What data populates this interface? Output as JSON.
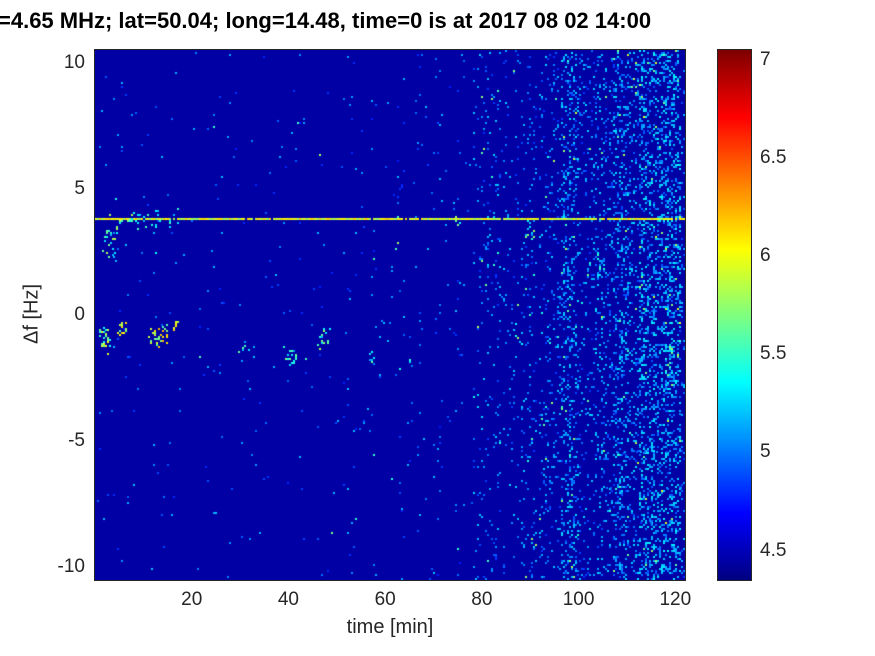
{
  "chart_data": {
    "type": "heatmap",
    "title": "=4.65 MHz;  lat=50.04; long=14.48, time=0 is at 2017 08 02 14:00",
    "xlabel": "time [min]",
    "ylabel": "Δf [Hz]",
    "xlim": [
      0,
      122
    ],
    "ylim": [
      -10.5,
      10.5
    ],
    "x_ticks": [
      20,
      40,
      60,
      80,
      100,
      120
    ],
    "y_ticks": [
      10,
      5,
      0,
      -5,
      -10
    ],
    "grid": false,
    "colormap": "jet",
    "colorbar": {
      "position": "right",
      "min": 4.35,
      "max": 7.05,
      "ticks": [
        4.5,
        5,
        5.5,
        6,
        6.5,
        7
      ]
    },
    "background_value": 4.45,
    "carrier_line": {
      "f": 3.8,
      "value": 5.95,
      "jitter": 0.4,
      "gap_prob": 0.07
    },
    "noise": {
      "base_density": 0.006,
      "base_value": 5.0,
      "bands": [
        {
          "t": 42,
          "dt": 1.5,
          "density": 0.012,
          "value": 5.0
        },
        {
          "t": 52,
          "dt": 2,
          "density": 0.015,
          "value": 5.0
        },
        {
          "t": 57,
          "dt": 1.5,
          "density": 0.018,
          "value": 5.0
        },
        {
          "t": 62,
          "dt": 2,
          "density": 0.022,
          "value": 5.0
        },
        {
          "t": 66,
          "dt": 1.5,
          "density": 0.02,
          "value": 5.0
        },
        {
          "t": 70,
          "dt": 2,
          "density": 0.028,
          "value": 5.0
        },
        {
          "t": 74,
          "dt": 1.5,
          "density": 0.025,
          "value": 5.0
        },
        {
          "t": 78,
          "dt": 2,
          "density": 0.04,
          "value": 5.05
        },
        {
          "t": 80,
          "dt": 4,
          "density": 0.055,
          "value": 5.05
        },
        {
          "t": 84.5,
          "dt": 3,
          "density": 0.045,
          "value": 5.05
        },
        {
          "t": 88,
          "dt": 3.5,
          "density": 0.07,
          "value": 5.05
        },
        {
          "t": 92,
          "dt": 30,
          "density": 0.085,
          "value": 5.05
        },
        {
          "t": 96.5,
          "dt": 3.5,
          "density": 0.2,
          "value": 5.1
        },
        {
          "t": 103.5,
          "dt": 3,
          "density": 0.13,
          "value": 5.1
        },
        {
          "t": 107,
          "dt": 3.5,
          "density": 0.22,
          "value": 5.1
        },
        {
          "t": 110.5,
          "dt": 2,
          "density": 0.15,
          "value": 5.1
        },
        {
          "t": 112.5,
          "dt": 8.5,
          "density": 0.27,
          "value": 5.15
        }
      ]
    },
    "clusters": [
      {
        "t": 0.5,
        "dt": 18,
        "f": 3.85,
        "df": 0.8,
        "density": 0.18,
        "value": 5.5
      },
      {
        "t": 1,
        "dt": 4,
        "f": 3.0,
        "df": 1.4,
        "density": 0.3,
        "value": 5.5
      },
      {
        "t": 0.8,
        "dt": 2.4,
        "f": -0.9,
        "df": 1.3,
        "density": 0.5,
        "value": 5.7
      },
      {
        "t": 4.2,
        "dt": 2.2,
        "f": -0.5,
        "df": 0.9,
        "density": 0.55,
        "value": 5.85
      },
      {
        "t": 11,
        "dt": 4,
        "f": -0.8,
        "df": 0.9,
        "density": 0.55,
        "value": 5.9
      },
      {
        "t": 15.8,
        "dt": 1.6,
        "f": -0.4,
        "df": 0.5,
        "density": 0.5,
        "value": 5.9
      },
      {
        "t": 29.5,
        "dt": 3,
        "f": -1.2,
        "df": 0.8,
        "density": 0.22,
        "value": 5.35
      },
      {
        "t": 38.5,
        "dt": 3.5,
        "f": -1.5,
        "df": 0.9,
        "density": 0.28,
        "value": 5.45
      },
      {
        "t": 45.5,
        "dt": 3.5,
        "f": -0.9,
        "df": 1.1,
        "density": 0.28,
        "value": 5.5
      },
      {
        "t": 55.5,
        "dt": 2.5,
        "f": -1.7,
        "df": 0.7,
        "density": 0.25,
        "value": 5.35
      },
      {
        "t": 64,
        "dt": 2,
        "f": -1.9,
        "df": 0.6,
        "density": 0.2,
        "value": 5.3
      },
      {
        "t": 74,
        "dt": 1.8,
        "f": 3.7,
        "df": 0.6,
        "density": 0.25,
        "value": 5.5
      },
      {
        "t": 86.5,
        "dt": 2,
        "f": -0.6,
        "df": 1.8,
        "density": 0.25,
        "value": 5.45
      },
      {
        "t": 88.5,
        "dt": 2.5,
        "f": 3.4,
        "df": 0.9,
        "density": 0.22,
        "value": 5.45
      },
      {
        "t": 103,
        "dt": 2.5,
        "f": 2.3,
        "df": 1.2,
        "density": 0.18,
        "value": 5.3
      },
      {
        "t": 117,
        "dt": 3,
        "f": -1.3,
        "df": 2.2,
        "density": 0.25,
        "value": 5.4
      }
    ],
    "h_streaks": [
      {
        "t": 93,
        "dt": 28,
        "f": -2.4,
        "density": 0.09,
        "value": 5.0
      },
      {
        "t": 93,
        "dt": 28,
        "f": -3.9,
        "density": 0.13,
        "value": 5.05
      },
      {
        "t": 95,
        "dt": 26,
        "f": -5.4,
        "density": 0.11,
        "value": 5.0
      },
      {
        "t": 97,
        "dt": 24,
        "f": -6.8,
        "density": 0.09,
        "value": 5.0
      },
      {
        "t": 99,
        "dt": 22,
        "f": -8.2,
        "density": 0.07,
        "value": 4.95
      }
    ]
  }
}
